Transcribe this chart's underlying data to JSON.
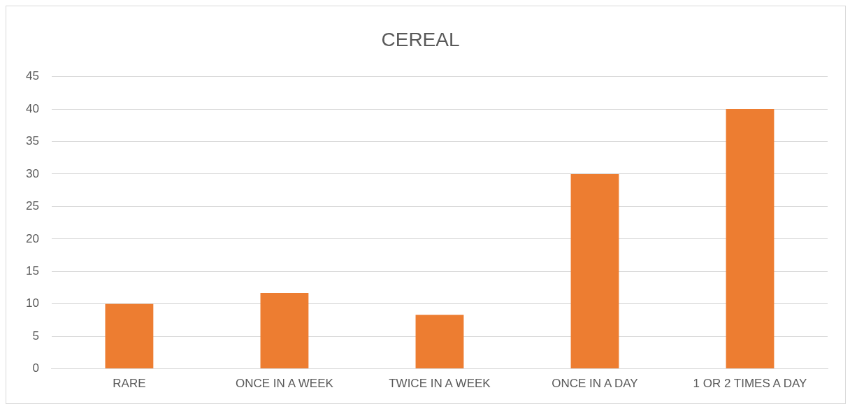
{
  "chart_data": {
    "type": "bar",
    "title": "CEREAL",
    "categories": [
      "RARE",
      "ONCE IN A WEEK",
      "TWICE IN A WEEK",
      "ONCE IN A DAY",
      "1 OR 2 TIMES A DAY"
    ],
    "values": [
      10,
      11.7,
      8.3,
      30,
      40
    ],
    "color": "#ed7d31",
    "ylim": [
      0,
      45
    ],
    "yticks": [
      0,
      5,
      10,
      15,
      20,
      25,
      30,
      35,
      40,
      45
    ],
    "grid": "y",
    "legend": false
  }
}
